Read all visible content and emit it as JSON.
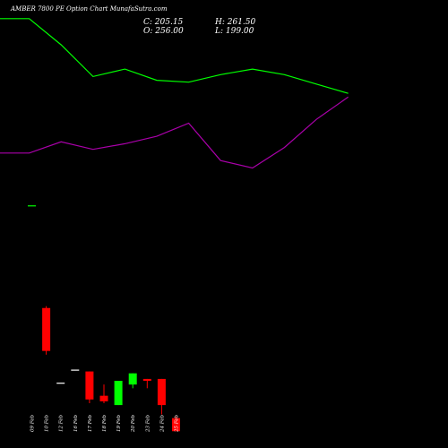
{
  "header": {
    "title": "AMBER 7800  PE Option  Chart MunafaSutra.com",
    "close": "C: 205.15",
    "high": "H: 261.50",
    "open": "O: 256.00",
    "low": "L: 199.00"
  },
  "colors": {
    "background": "#000000",
    "up": "#00ff00",
    "down": "#ff0000",
    "doji": "#ffffff",
    "line_green": "#00ff00",
    "line_purple": "#aa00aa",
    "label": "#ffffff"
  },
  "chart_data": {
    "type": "candlestick",
    "categories": [
      "09 Feb",
      "10 Feb",
      "12 Feb",
      "16 Feb",
      "17 Feb",
      "18 Feb",
      "19 Feb",
      "20 Feb",
      "23 Feb",
      "24 Feb",
      "25 Feb"
    ],
    "candles": [
      {
        "open": 270.0,
        "high": 270.0,
        "low": 270.0,
        "close": 270.0
      },
      {
        "open": 215.0,
        "high": 216.0,
        "low": 190.0,
        "close": 192.0
      },
      {
        "open": 175.0,
        "high": 175.0,
        "low": 175.0,
        "close": 175.0
      },
      {
        "open": 182.0,
        "high": 182.0,
        "low": 182.0,
        "close": 182.0
      },
      {
        "open": 181.0,
        "high": 181.0,
        "low": 164.0,
        "close": 166.0
      },
      {
        "open": 168.0,
        "high": 174.0,
        "low": 164.0,
        "close": 165.0
      },
      {
        "open": 163.0,
        "high": 176.0,
        "low": 163.0,
        "close": 176.0
      },
      {
        "open": 174.0,
        "high": 180.0,
        "low": 172.0,
        "close": 180.0
      },
      {
        "open": 177.0,
        "high": 177.0,
        "low": 172.0,
        "close": 176.0
      },
      {
        "open": 177.0,
        "high": 177.0,
        "low": 158.0,
        "close": 163.0
      },
      {
        "open": 156.0,
        "high": 157.0,
        "low": 149.0,
        "close": 149.0
      }
    ],
    "overlay_lines": [
      {
        "color": "#00ff00",
        "values": [
          370.0,
          370.0,
          356.0,
          339.0,
          343.0,
          337.0,
          336.0,
          340.0,
          343.0,
          340.0,
          335.0,
          330.0
        ]
      },
      {
        "color": "#aa00aa",
        "values": [
          298.0,
          298.0,
          304.0,
          300.0,
          303.0,
          307.0,
          314.0,
          294.0,
          290.0,
          301.0,
          316.0,
          328.0
        ]
      }
    ],
    "line_x": [
      0,
      1,
      2,
      3,
      4,
      5,
      6,
      7,
      8,
      9,
      10,
      11
    ],
    "ylim": [
      140,
      380
    ],
    "xlim": [
      -2,
      13
    ],
    "grid": false
  }
}
